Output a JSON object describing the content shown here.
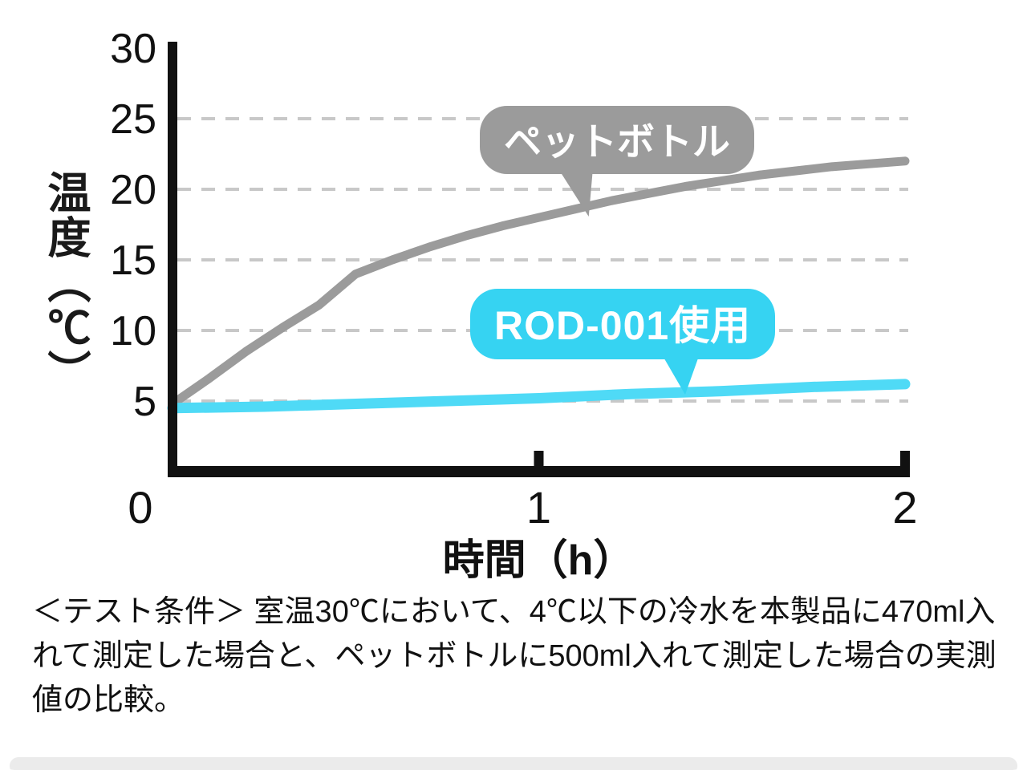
{
  "chart_data": {
    "type": "line",
    "title": "",
    "xlabel": "時間（h）",
    "ylabel": "温度（℃）",
    "xlim": [
      0,
      2
    ],
    "ylim": [
      0,
      30
    ],
    "x_ticks": [
      0,
      1,
      2
    ],
    "y_ticks": [
      5,
      10,
      15,
      20,
      25,
      30
    ],
    "grid_values": [
      5,
      10,
      15,
      20,
      25
    ],
    "grid_on": true,
    "legend_position": "callouts-on-plot",
    "series": [
      {
        "name": "ペットボトル",
        "color": "#9b9b9b",
        "width": 11,
        "x": [
          0,
          0.1,
          0.2,
          0.3,
          0.4,
          0.5,
          0.6,
          0.7,
          0.8,
          0.9,
          1.0,
          1.1,
          1.2,
          1.3,
          1.4,
          1.5,
          1.6,
          1.7,
          1.8,
          1.9,
          2.0
        ],
        "values": [
          4.8,
          6.6,
          8.5,
          10.2,
          11.8,
          14.0,
          15.0,
          15.9,
          16.7,
          17.4,
          18.0,
          18.6,
          19.2,
          19.7,
          20.2,
          20.6,
          21.0,
          21.3,
          21.6,
          21.8,
          22.0
        ]
      },
      {
        "name": "ROD-001使用",
        "color": "#4fdaf6",
        "width": 13,
        "x": [
          0,
          0.25,
          0.5,
          0.75,
          1.0,
          1.25,
          1.5,
          1.75,
          2.0
        ],
        "values": [
          4.5,
          4.6,
          4.8,
          5.0,
          5.2,
          5.5,
          5.7,
          6.0,
          6.2
        ]
      }
    ]
  },
  "callouts": {
    "pet": {
      "text": "ペットボトル",
      "color": "#9b9b9b"
    },
    "rod": {
      "text": "ROD-001使用",
      "color": "#36d3f2"
    }
  },
  "axes": {
    "ylabel": "温度（℃）",
    "xlabel": "時間（h）"
  },
  "footnote": {
    "text": "＜テスト条件＞ 室温30℃において、4℃以下の冷水を本製品に470ml入れて測定した場合と、ペットボトルに500ml入れて測定した場合の実測値の比較。"
  }
}
